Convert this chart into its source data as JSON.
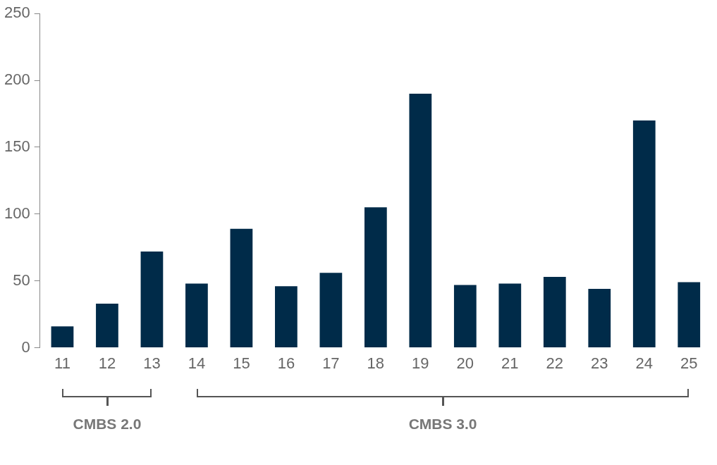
{
  "chart_data": {
    "type": "bar",
    "categories": [
      "11",
      "12",
      "13",
      "14",
      "15",
      "16",
      "17",
      "18",
      "19",
      "20",
      "21",
      "22",
      "23",
      "24",
      "25"
    ],
    "values": [
      16,
      33,
      72,
      48,
      89,
      46,
      56,
      105,
      190,
      47,
      48,
      53,
      44,
      170,
      49
    ],
    "color": "#002b49",
    "ylim": [
      0,
      250
    ],
    "yticks": [
      0,
      50,
      100,
      150,
      200,
      250
    ],
    "grid": false,
    "legend": false,
    "annotations": [
      "CMBS 2.0",
      "CMBS 3.0"
    ]
  }
}
